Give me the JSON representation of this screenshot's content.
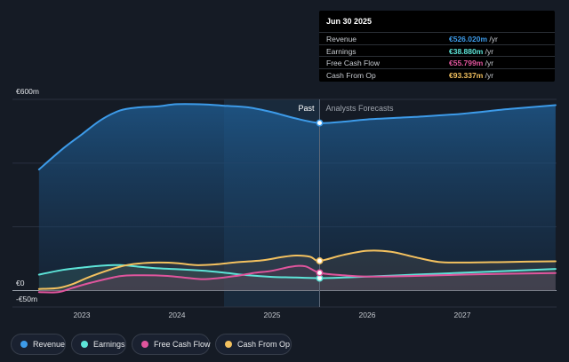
{
  "chart_data": {
    "type": "area",
    "x_unit": "year",
    "x_ticks": [
      "2023",
      "2024",
      "2025",
      "2026",
      "2027"
    ],
    "y_ticks": [
      "€600m",
      "€0",
      "-€50m"
    ],
    "ylim": [
      -50,
      600
    ],
    "past_label": "Past",
    "forecast_label": "Analysts Forecasts",
    "divider_x": 2025.5,
    "series": [
      {
        "name": "Revenue",
        "color": "#3d9be9",
        "points": [
          [
            2022.55,
            380
          ],
          [
            2022.8,
            445
          ],
          [
            2023.0,
            490
          ],
          [
            2023.2,
            535
          ],
          [
            2023.4,
            565
          ],
          [
            2023.6,
            575
          ],
          [
            2023.8,
            578
          ],
          [
            2024.0,
            585
          ],
          [
            2024.3,
            584
          ],
          [
            2024.5,
            580
          ],
          [
            2024.75,
            575
          ],
          [
            2025.0,
            560
          ],
          [
            2025.25,
            540
          ],
          [
            2025.5,
            526
          ],
          [
            2025.75,
            530
          ],
          [
            2026.0,
            537
          ],
          [
            2026.5,
            545
          ],
          [
            2027.0,
            555
          ],
          [
            2027.5,
            570
          ],
          [
            2027.98,
            582
          ]
        ]
      },
      {
        "name": "Earnings",
        "color": "#5de4d8",
        "points": [
          [
            2022.55,
            50
          ],
          [
            2022.8,
            65
          ],
          [
            2023.0,
            72
          ],
          [
            2023.2,
            78
          ],
          [
            2023.4,
            80
          ],
          [
            2023.6,
            75
          ],
          [
            2023.8,
            70
          ],
          [
            2024.0,
            67
          ],
          [
            2024.3,
            62
          ],
          [
            2024.5,
            56
          ],
          [
            2024.75,
            48
          ],
          [
            2025.0,
            43
          ],
          [
            2025.25,
            41
          ],
          [
            2025.5,
            38.9
          ],
          [
            2025.75,
            41
          ],
          [
            2026.0,
            44
          ],
          [
            2026.5,
            50
          ],
          [
            2027.0,
            56
          ],
          [
            2027.5,
            62
          ],
          [
            2027.98,
            68
          ]
        ]
      },
      {
        "name": "Free Cash Flow",
        "color": "#e0559d",
        "points": [
          [
            2022.55,
            -5
          ],
          [
            2022.75,
            -5
          ],
          [
            2022.9,
            8
          ],
          [
            2023.1,
            25
          ],
          [
            2023.4,
            45
          ],
          [
            2023.6,
            48
          ],
          [
            2023.9,
            46
          ],
          [
            2024.1,
            40
          ],
          [
            2024.3,
            36
          ],
          [
            2024.6,
            45
          ],
          [
            2024.8,
            55
          ],
          [
            2025.0,
            62
          ],
          [
            2025.2,
            75
          ],
          [
            2025.35,
            76
          ],
          [
            2025.5,
            55.8
          ],
          [
            2025.75,
            48
          ],
          [
            2026.0,
            44
          ],
          [
            2026.5,
            46
          ],
          [
            2027.0,
            50
          ],
          [
            2027.5,
            53
          ],
          [
            2027.98,
            55
          ]
        ]
      },
      {
        "name": "Cash From Op",
        "color": "#f3c15f",
        "points": [
          [
            2022.55,
            5
          ],
          [
            2022.75,
            8
          ],
          [
            2022.9,
            20
          ],
          [
            2023.1,
            45
          ],
          [
            2023.4,
            75
          ],
          [
            2023.6,
            85
          ],
          [
            2023.8,
            88
          ],
          [
            2024.0,
            86
          ],
          [
            2024.2,
            80
          ],
          [
            2024.4,
            82
          ],
          [
            2024.6,
            88
          ],
          [
            2024.9,
            95
          ],
          [
            2025.1,
            105
          ],
          [
            2025.25,
            110
          ],
          [
            2025.4,
            106
          ],
          [
            2025.5,
            93.3
          ],
          [
            2025.75,
            112
          ],
          [
            2026.0,
            125
          ],
          [
            2026.25,
            122
          ],
          [
            2026.5,
            105
          ],
          [
            2026.75,
            90
          ],
          [
            2027.0,
            88
          ],
          [
            2027.5,
            90
          ],
          [
            2027.98,
            92
          ]
        ]
      }
    ],
    "legend": [
      "Revenue",
      "Earnings",
      "Free Cash Flow",
      "Cash From Op"
    ]
  },
  "tooltip": {
    "date": "Jun 30 2025",
    "rows": [
      {
        "label": "Revenue",
        "value": "€526.020m",
        "unit": "/yr",
        "color": "#3d9be9"
      },
      {
        "label": "Earnings",
        "value": "€38.880m",
        "unit": "/yr",
        "color": "#5de4d8"
      },
      {
        "label": "Free Cash Flow",
        "value": "€55.799m",
        "unit": "/yr",
        "color": "#e0559d"
      },
      {
        "label": "Cash From Op",
        "value": "€93.337m",
        "unit": "/yr",
        "color": "#f3c15f"
      }
    ]
  },
  "legend_items": [
    {
      "label": "Revenue",
      "color": "#3d9be9"
    },
    {
      "label": "Earnings",
      "color": "#5de4d8"
    },
    {
      "label": "Free Cash Flow",
      "color": "#e0559d"
    },
    {
      "label": "Cash From Op",
      "color": "#f3c15f"
    }
  ]
}
